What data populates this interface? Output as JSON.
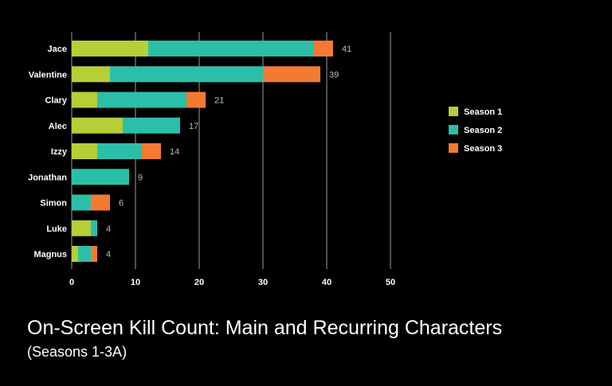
{
  "chart_data": {
    "type": "bar",
    "orientation": "horizontal",
    "stacked": true,
    "title": "On-Screen Kill Count: Main and Recurring Characters",
    "subtitle": "(Seasons 1-3A)",
    "categories": [
      "Jace",
      "Valentine",
      "Clary",
      "Alec",
      "Izzy",
      "Jonathan",
      "Simon",
      "Luke",
      "Magnus"
    ],
    "series": [
      {
        "name": "Season 1",
        "color": "#b5cf36",
        "values": [
          12,
          6,
          4,
          8,
          4,
          0,
          0,
          3,
          1
        ]
      },
      {
        "name": "Season 2",
        "color": "#2bbfaa",
        "values": [
          26,
          24,
          14,
          9,
          7,
          9,
          3,
          1,
          2
        ]
      },
      {
        "name": "Season 3",
        "color": "#f47a32",
        "values": [
          3,
          9,
          3,
          0,
          3,
          0,
          3,
          0,
          1
        ]
      }
    ],
    "totals": [
      "41",
      "39",
      "21",
      "17",
      "14",
      "9",
      "6",
      "4",
      "4"
    ],
    "xlim": [
      0,
      50
    ],
    "xticks": [
      "0",
      "10",
      "20",
      "30",
      "40",
      "50"
    ],
    "grid": true,
    "legend_position": "right"
  }
}
